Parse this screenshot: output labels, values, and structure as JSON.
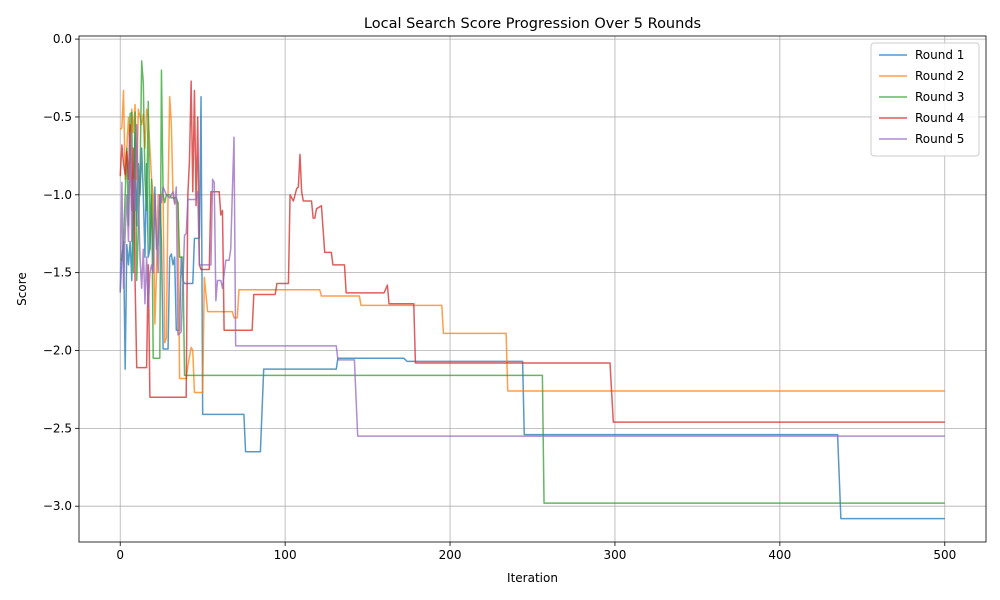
{
  "chart_data": {
    "type": "line",
    "title": "Local Search Score Progression Over 5 Rounds",
    "xlabel": "Iteration",
    "ylabel": "Score",
    "xlim": [
      -25,
      525
    ],
    "ylim": [
      -3.23,
      0.02
    ],
    "xticks": [
      0,
      100,
      200,
      300,
      400,
      500
    ],
    "yticks": [
      0.0,
      -0.5,
      -1.0,
      -1.5,
      -2.0,
      -2.5,
      -3.0
    ],
    "ytick_labels": [
      "0.0",
      "−0.5",
      "−1.0",
      "−1.5",
      "−2.0",
      "−2.5",
      "−3.0"
    ],
    "grid": true,
    "legend_position": "top-right",
    "series": [
      {
        "name": "Round 1",
        "color": "#1f77b4",
        "points": [
          [
            0,
            -1.62
          ],
          [
            1,
            -1.4
          ],
          [
            2,
            -1.3
          ],
          [
            3,
            -2.12
          ],
          [
            4,
            -1.32
          ],
          [
            5,
            -1.45
          ],
          [
            6,
            -1.3
          ],
          [
            7,
            -1.55
          ],
          [
            8,
            -1.0
          ],
          [
            9,
            -0.6
          ],
          [
            10,
            -1.2
          ],
          [
            11,
            -0.8
          ],
          [
            12,
            -1.0
          ],
          [
            13,
            -0.7
          ],
          [
            14,
            -1.0
          ],
          [
            15,
            -1.4
          ],
          [
            16,
            -0.8
          ],
          [
            17,
            -1.4
          ],
          [
            18,
            -1.35
          ],
          [
            19,
            -1.0
          ],
          [
            20,
            -1.45
          ],
          [
            21,
            -0.95
          ],
          [
            22,
            -1.35
          ],
          [
            23,
            -1.3
          ],
          [
            24,
            -1.0
          ],
          [
            25,
            -1.3
          ],
          [
            26,
            -1.99
          ],
          [
            29,
            -1.99
          ],
          [
            30,
            -1.4
          ],
          [
            31,
            -1.38
          ],
          [
            32,
            -1.45
          ],
          [
            33,
            -1.4
          ],
          [
            34,
            -1.87
          ],
          [
            36,
            -1.87
          ],
          [
            37,
            -1.4
          ],
          [
            38,
            -1.55
          ],
          [
            39,
            -1.57
          ],
          [
            42,
            -1.57
          ],
          [
            44,
            -1.57
          ],
          [
            45,
            -1.28
          ],
          [
            48,
            -1.28
          ],
          [
            49,
            -0.37
          ],
          [
            50,
            -2.41
          ],
          [
            75,
            -2.41
          ],
          [
            76,
            -2.65
          ],
          [
            85,
            -2.65
          ],
          [
            87,
            -2.12
          ],
          [
            131,
            -2.12
          ],
          [
            132,
            -2.05
          ],
          [
            172,
            -2.05
          ],
          [
            174,
            -2.07
          ],
          [
            244,
            -2.07
          ],
          [
            245,
            -2.54
          ],
          [
            435,
            -2.54
          ],
          [
            437,
            -3.08
          ],
          [
            500,
            -3.08
          ]
        ]
      },
      {
        "name": "Round 2",
        "color": "#ff7f0e",
        "points": [
          [
            0,
            -0.58
          ],
          [
            1,
            -0.57
          ],
          [
            2,
            -0.33
          ],
          [
            3,
            -0.9
          ],
          [
            4,
            -0.7
          ],
          [
            5,
            -0.5
          ],
          [
            6,
            -0.8
          ],
          [
            7,
            -0.45
          ],
          [
            8,
            -0.6
          ],
          [
            9,
            -0.42
          ],
          [
            10,
            -0.9
          ],
          [
            11,
            -0.45
          ],
          [
            12,
            -0.5
          ],
          [
            13,
            -0.55
          ],
          [
            14,
            -0.48
          ],
          [
            15,
            -0.7
          ],
          [
            16,
            -0.45
          ],
          [
            17,
            -0.5
          ],
          [
            18,
            -0.7
          ],
          [
            19,
            -0.9
          ],
          [
            20,
            -1.0
          ],
          [
            21,
            -1.83
          ],
          [
            22,
            -1.5
          ],
          [
            23,
            -1.0
          ],
          [
            26,
            -1.0
          ],
          [
            27,
            -1.95
          ],
          [
            28,
            -1.92
          ],
          [
            29,
            -1.0
          ],
          [
            30,
            -0.37
          ],
          [
            31,
            -0.55
          ],
          [
            32,
            -1.0
          ],
          [
            33,
            -1.05
          ],
          [
            35,
            -1.05
          ],
          [
            36,
            -2.18
          ],
          [
            40,
            -2.18
          ],
          [
            41,
            -2.1
          ],
          [
            43,
            -1.98
          ],
          [
            44,
            -2.0
          ],
          [
            45,
            -2.27
          ],
          [
            50,
            -2.27
          ],
          [
            51,
            -1.53
          ],
          [
            53,
            -1.75
          ],
          [
            68,
            -1.75
          ],
          [
            69,
            -1.79
          ],
          [
            71,
            -1.79
          ],
          [
            72,
            -1.61
          ],
          [
            121,
            -1.61
          ],
          [
            122,
            -1.65
          ],
          [
            145,
            -1.65
          ],
          [
            146,
            -1.71
          ],
          [
            195,
            -1.71
          ],
          [
            196,
            -1.89
          ],
          [
            234,
            -1.89
          ],
          [
            235,
            -2.26
          ],
          [
            500,
            -2.26
          ]
        ]
      },
      {
        "name": "Round 3",
        "color": "#2ca02c",
        "points": [
          [
            0,
            -1.41
          ],
          [
            1,
            -1.42
          ],
          [
            2,
            -1.3
          ],
          [
            3,
            -1.0
          ],
          [
            4,
            -0.7
          ],
          [
            5,
            -1.2
          ],
          [
            6,
            -0.48
          ],
          [
            7,
            -0.47
          ],
          [
            8,
            -1.5
          ],
          [
            9,
            -0.47
          ],
          [
            10,
            -1.55
          ],
          [
            11,
            -1.2
          ],
          [
            12,
            -0.9
          ],
          [
            13,
            -0.14
          ],
          [
            14,
            -0.28
          ],
          [
            15,
            -0.9
          ],
          [
            16,
            -1.1
          ],
          [
            17,
            -0.4
          ],
          [
            18,
            -1.35
          ],
          [
            19,
            -0.9
          ],
          [
            20,
            -2.05
          ],
          [
            24,
            -2.05
          ],
          [
            25,
            -0.2
          ],
          [
            26,
            -1.0
          ],
          [
            27,
            -1.05
          ],
          [
            28,
            -1.0
          ],
          [
            30,
            -1.0
          ],
          [
            31,
            -1.02
          ],
          [
            34,
            -1.02
          ],
          [
            35,
            -1.05
          ],
          [
            36,
            -1.4
          ],
          [
            38,
            -1.4
          ],
          [
            39,
            -2.16
          ],
          [
            256,
            -2.16
          ],
          [
            257,
            -2.98
          ],
          [
            500,
            -2.98
          ]
        ]
      },
      {
        "name": "Round 4",
        "color": "#d62728",
        "points": [
          [
            0,
            -0.88
          ],
          [
            1,
            -0.68
          ],
          [
            2,
            -0.8
          ],
          [
            3,
            -0.87
          ],
          [
            4,
            -0.72
          ],
          [
            5,
            -0.9
          ],
          [
            6,
            -0.55
          ],
          [
            7,
            -1.1
          ],
          [
            8,
            -0.7
          ],
          [
            9,
            -1.55
          ],
          [
            10,
            -2.11
          ],
          [
            16,
            -2.11
          ],
          [
            17,
            -1.45
          ],
          [
            18,
            -2.3
          ],
          [
            40,
            -2.3
          ],
          [
            41,
            -1.0
          ],
          [
            42,
            -0.78
          ],
          [
            43,
            -0.27
          ],
          [
            44,
            -0.98
          ],
          [
            45,
            -0.33
          ],
          [
            46,
            -1.07
          ],
          [
            47,
            -0.5
          ],
          [
            48,
            -1.45
          ],
          [
            49,
            -1.48
          ],
          [
            54,
            -1.48
          ],
          [
            55,
            -0.98
          ],
          [
            60,
            -0.98
          ],
          [
            61,
            -1.13
          ],
          [
            62,
            -1.1
          ],
          [
            63,
            -1.87
          ],
          [
            80,
            -1.87
          ],
          [
            81,
            -1.64
          ],
          [
            94,
            -1.64
          ],
          [
            95,
            -1.57
          ],
          [
            102,
            -1.57
          ],
          [
            103,
            -1.0
          ],
          [
            105,
            -1.04
          ],
          [
            107,
            -0.96
          ],
          [
            108,
            -0.95
          ],
          [
            109,
            -0.74
          ],
          [
            110,
            -0.98
          ],
          [
            111,
            -1.04
          ],
          [
            116,
            -1.04
          ],
          [
            117,
            -1.15
          ],
          [
            118,
            -1.15
          ],
          [
            119,
            -1.09
          ],
          [
            122,
            -1.07
          ],
          [
            124,
            -1.37
          ],
          [
            128,
            -1.37
          ],
          [
            129,
            -1.45
          ],
          [
            136,
            -1.45
          ],
          [
            137,
            -1.63
          ],
          [
            160,
            -1.63
          ],
          [
            162,
            -1.58
          ],
          [
            163,
            -1.7
          ],
          [
            178,
            -1.7
          ],
          [
            179,
            -2.08
          ],
          [
            297,
            -2.08
          ],
          [
            299,
            -2.46
          ],
          [
            500,
            -2.46
          ]
        ]
      },
      {
        "name": "Round 5",
        "color": "#9467bd",
        "points": [
          [
            0,
            -1.63
          ],
          [
            1,
            -0.92
          ],
          [
            2,
            -1.6
          ],
          [
            3,
            -1.25
          ],
          [
            4,
            -1.0
          ],
          [
            5,
            -1.3
          ],
          [
            6,
            -0.6
          ],
          [
            7,
            -1.3
          ],
          [
            8,
            -0.9
          ],
          [
            9,
            -1.1
          ],
          [
            10,
            -0.55
          ],
          [
            11,
            -1.0
          ],
          [
            12,
            -1.4
          ],
          [
            13,
            -1.6
          ],
          [
            14,
            -1.35
          ],
          [
            15,
            -1.7
          ],
          [
            16,
            -1.4
          ],
          [
            17,
            -1.72
          ],
          [
            18,
            -1.5
          ],
          [
            19,
            -1.45
          ],
          [
            20,
            -1.5
          ],
          [
            21,
            -1.0
          ],
          [
            22,
            -1.25
          ],
          [
            23,
            -1.5
          ],
          [
            24,
            -1.0
          ],
          [
            25,
            -1.05
          ],
          [
            26,
            -0.95
          ],
          [
            28,
            -1.0
          ],
          [
            30,
            -1.02
          ],
          [
            32,
            -0.98
          ],
          [
            33,
            -1.06
          ],
          [
            34,
            -0.95
          ],
          [
            35,
            -1.9
          ],
          [
            37,
            -1.88
          ],
          [
            39,
            -1.26
          ],
          [
            40,
            -1.25
          ],
          [
            41,
            -1.03
          ],
          [
            46,
            -1.03
          ],
          [
            47,
            -0.98
          ],
          [
            48,
            -1.45
          ],
          [
            55,
            -1.45
          ],
          [
            56,
            -0.9
          ],
          [
            57,
            -0.92
          ],
          [
            58,
            -1.68
          ],
          [
            59,
            -1.55
          ],
          [
            61,
            -1.55
          ],
          [
            62,
            -1.6
          ],
          [
            64,
            -1.42
          ],
          [
            66,
            -1.42
          ],
          [
            67,
            -1.35
          ],
          [
            68,
            -0.98
          ],
          [
            69,
            -0.63
          ],
          [
            70,
            -1.97
          ],
          [
            131,
            -1.97
          ],
          [
            132,
            -2.06
          ],
          [
            142,
            -2.06
          ],
          [
            144,
            -2.55
          ],
          [
            500,
            -2.55
          ]
        ]
      }
    ]
  }
}
